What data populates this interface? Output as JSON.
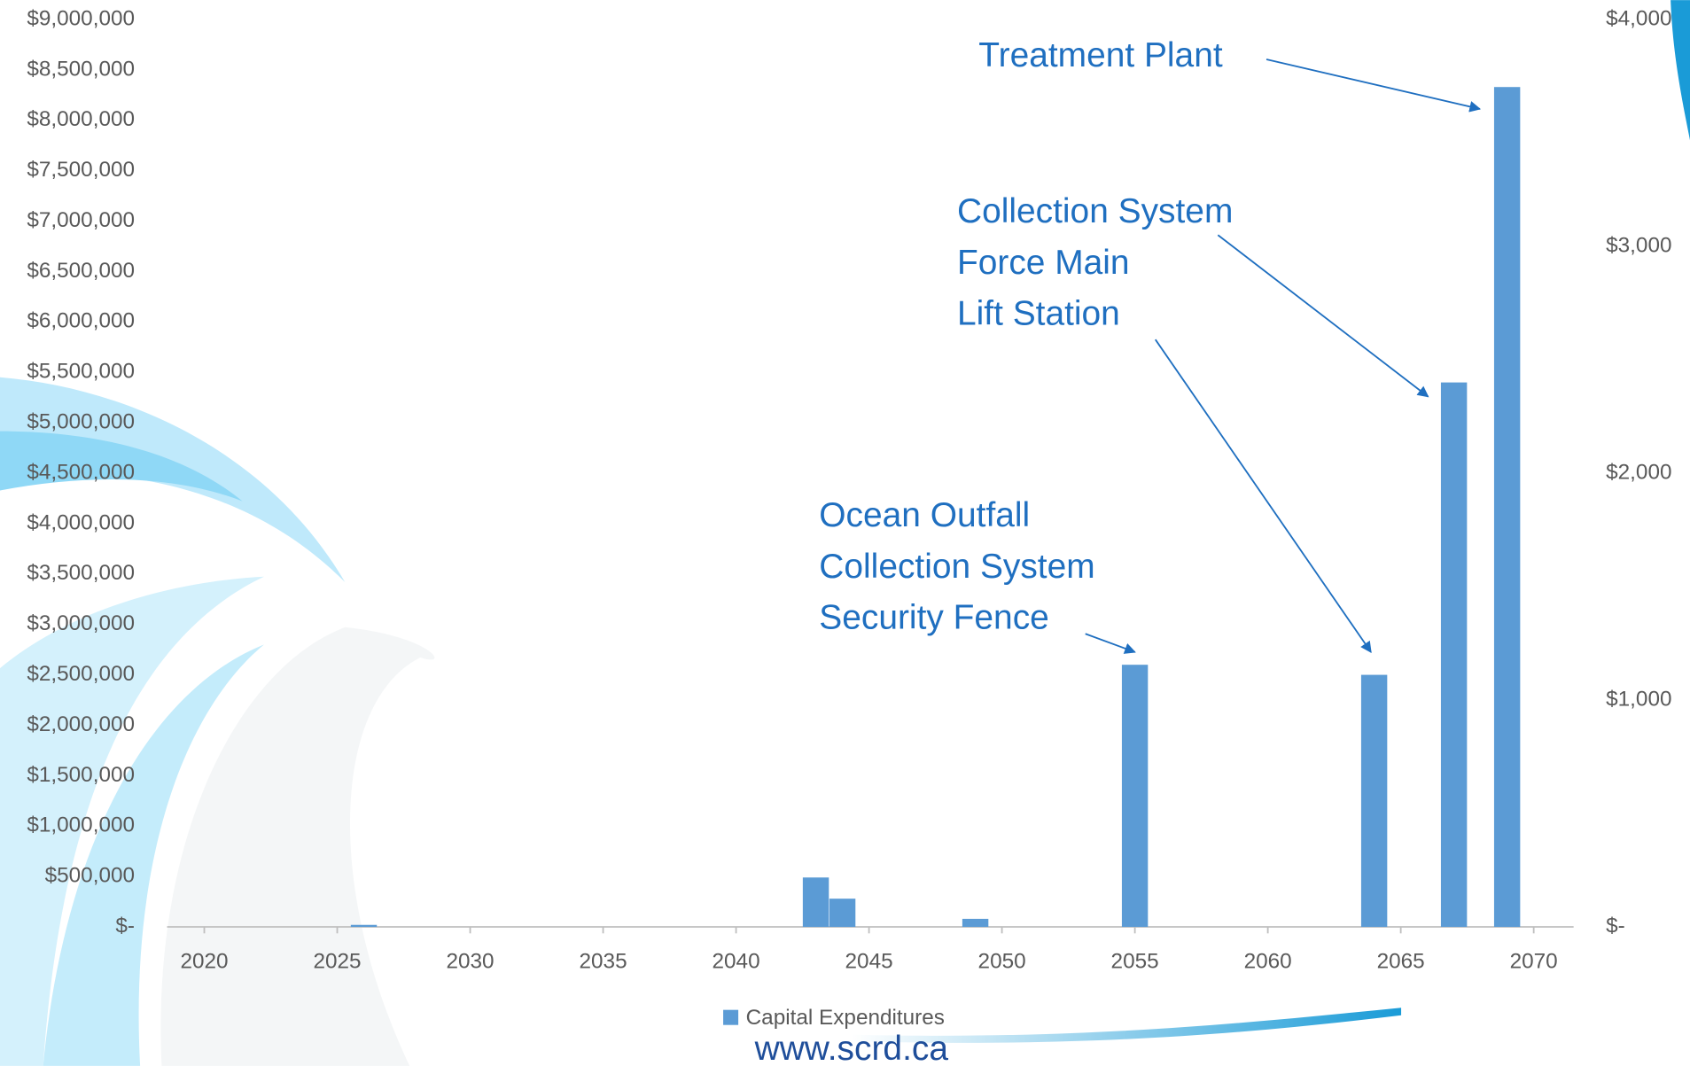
{
  "chart_data": {
    "type": "bar",
    "x": [
      2026,
      2043,
      2044,
      2049,
      2055,
      2064,
      2067,
      2069
    ],
    "series": [
      {
        "name": "Capital Expenditures",
        "color": "#5b9bd5",
        "values": [
          20000,
          490000,
          280000,
          80000,
          2600000,
          2500000,
          5400000,
          8330000
        ]
      }
    ],
    "xlim": [
      2018.6,
      2071.5
    ],
    "xticks": [
      2020,
      2025,
      2030,
      2035,
      2040,
      2045,
      2050,
      2055,
      2060,
      2065,
      2070
    ],
    "ylim": [
      0,
      9000000
    ],
    "yticks": [
      {
        "value": 0,
        "label": "$-"
      },
      {
        "value": 500000,
        "label": "$500,000"
      },
      {
        "value": 1000000,
        "label": "$1,000,000"
      },
      {
        "value": 1500000,
        "label": "$1,500,000"
      },
      {
        "value": 2000000,
        "label": "$2,000,000"
      },
      {
        "value": 2500000,
        "label": "$2,500,000"
      },
      {
        "value": 3000000,
        "label": "$3,000,000"
      },
      {
        "value": 3500000,
        "label": "$3,500,000"
      },
      {
        "value": 4000000,
        "label": "$4,000,000"
      },
      {
        "value": 4500000,
        "label": "$4,500,000"
      },
      {
        "value": 5000000,
        "label": "$5,000,000"
      },
      {
        "value": 5500000,
        "label": "$5,500,000"
      },
      {
        "value": 6000000,
        "label": "$6,000,000"
      },
      {
        "value": 6500000,
        "label": "$6,500,000"
      },
      {
        "value": 7000000,
        "label": "$7,000,000"
      },
      {
        "value": 7500000,
        "label": "$7,500,000"
      },
      {
        "value": 8000000,
        "label": "$8,000,000"
      },
      {
        "value": 8500000,
        "label": "$8,500,000"
      },
      {
        "value": 9000000,
        "label": "$9,000,000"
      }
    ],
    "y2lim": [
      0,
      4000
    ],
    "y2ticks": [
      {
        "value": 0,
        "label": "$-"
      },
      {
        "value": 1000,
        "label": "$1,000"
      },
      {
        "value": 2000,
        "label": "$2,000"
      },
      {
        "value": 3000,
        "label": "$3,000"
      },
      {
        "value": 4000,
        "label": "$4,000"
      }
    ],
    "grid": false,
    "legend": "bottom",
    "annotations": [
      {
        "lines": [
          "Treatment Plant"
        ]
      },
      {
        "lines": [
          "Collection System",
          "Force Main",
          "Lift Station"
        ]
      },
      {
        "lines": [
          "Ocean Outfall",
          "Collection System",
          "Security Fence"
        ]
      }
    ]
  },
  "footer": "www.scrd.ca"
}
